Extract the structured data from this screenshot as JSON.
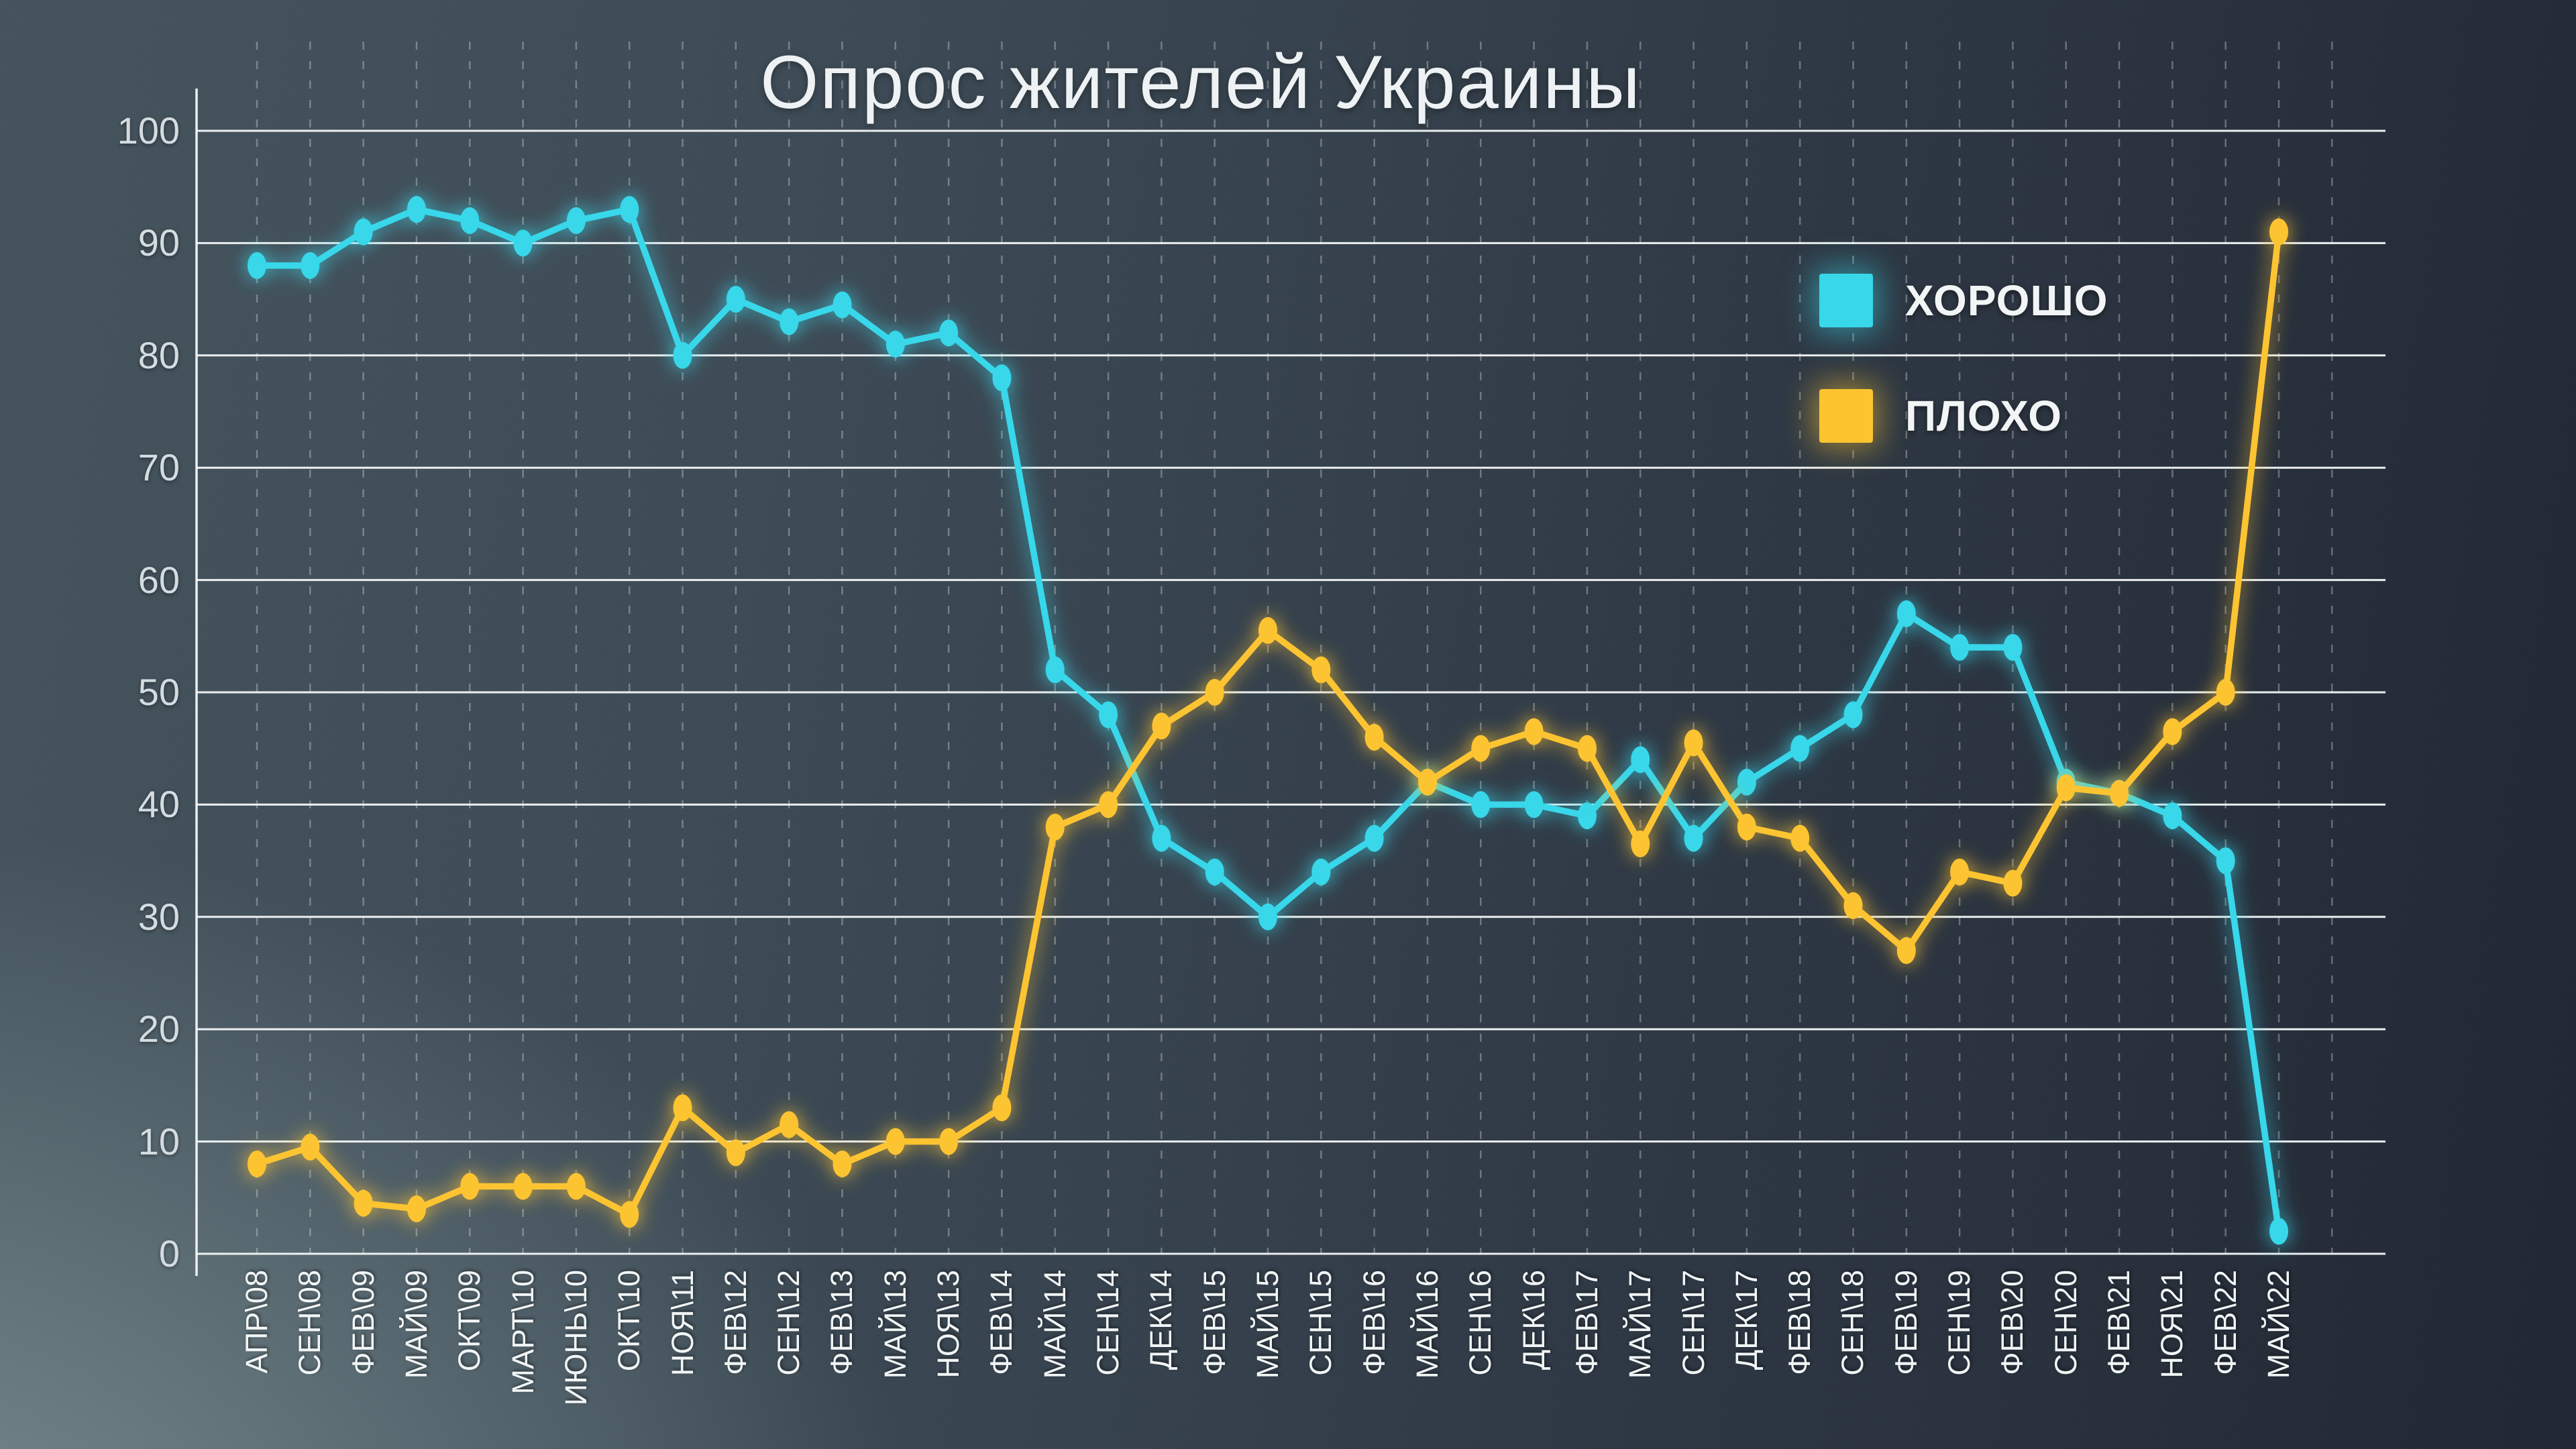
{
  "chart_data": {
    "type": "line",
    "title": "Опрос жителей Украины",
    "categories": [
      "АПР\\08",
      "СЕН\\08",
      "ФЕВ\\09",
      "МАЙ\\09",
      "ОКТ\\09",
      "МАРТ\\10",
      "ИЮНЬ\\10",
      "ОКТ\\10",
      "НОЯ\\11",
      "ФЕВ\\12",
      "СЕН\\12",
      "ФЕВ\\13",
      "МАЙ\\13",
      "НОЯ\\13",
      "ФЕВ\\14",
      "МАЙ\\14",
      "СЕН\\14",
      "ДЕК\\14",
      "ФЕВ\\15",
      "МАЙ\\15",
      "СЕН\\15",
      "ФЕВ\\16",
      "МАЙ\\16",
      "СЕН\\16",
      "ДЕК\\16",
      "ФЕВ\\17",
      "МАЙ\\17",
      "СЕН\\17",
      "ДЕК\\17",
      "ФЕВ\\18",
      "СЕН\\18",
      "ФЕВ\\19",
      "СЕН\\19",
      "ФЕВ\\20",
      "СЕН\\20",
      "ФЕВ\\21",
      "НОЯ\\21",
      "ФЕВ\\22",
      "МАЙ\\22"
    ],
    "series": [
      {
        "name": "ХОРОШО",
        "color": "#38d7ea",
        "values": [
          88,
          88,
          91,
          93,
          92,
          90,
          92,
          93,
          80,
          85,
          83,
          84.5,
          81,
          82,
          78,
          52,
          48,
          37,
          34,
          30,
          34,
          37,
          42,
          40,
          40,
          39,
          44,
          37,
          42,
          45,
          48,
          57,
          54,
          54,
          42,
          41,
          39,
          35,
          2
        ]
      },
      {
        "name": "ПЛОХО",
        "color": "#fdc430",
        "values": [
          8,
          9.5,
          4.5,
          4,
          6,
          6,
          6,
          3.5,
          13,
          9,
          11.5,
          8,
          10,
          10,
          13,
          38,
          40,
          47,
          50,
          55.5,
          52,
          46,
          42,
          45,
          46.5,
          45,
          36.5,
          45.5,
          38,
          37,
          31,
          27,
          34,
          33,
          41.5,
          41,
          46.5,
          50,
          91
        ]
      }
    ],
    "ylim": [
      0,
      100
    ],
    "yticks": [
      0,
      10,
      20,
      30,
      40,
      50,
      60,
      70,
      80,
      90,
      100
    ],
    "xlabel": "",
    "ylabel": "",
    "legend_position": "top-right",
    "grid": {
      "horizontal": "solid-white",
      "vertical": "dashed-per-category"
    },
    "marker": "ellipse",
    "background": "dark-slate-gradient"
  },
  "colors": {
    "good_line": "#38d7ea",
    "bad_line": "#fdc430",
    "gridline": "#f5f8f8",
    "tick_text": "#d3dce0",
    "title_text": "#eef2f4"
  }
}
